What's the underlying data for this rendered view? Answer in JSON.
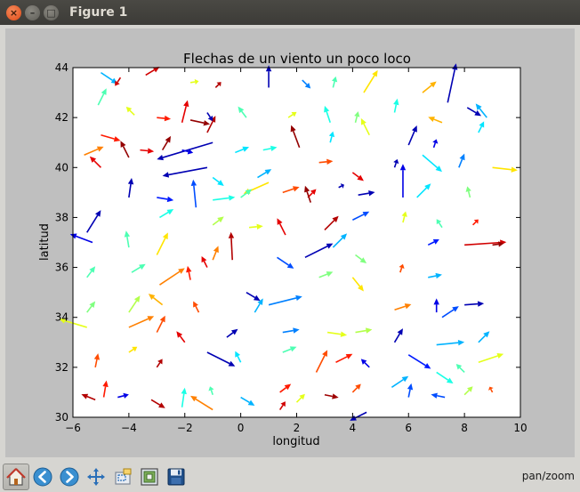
{
  "window": {
    "title": "Figure 1",
    "close_glyph": "×",
    "min_glyph": "–",
    "max_glyph": "□"
  },
  "toolbar": {
    "buttons": [
      {
        "name": "home-button",
        "icon": "home-icon",
        "active": true
      },
      {
        "name": "back-button",
        "icon": "arrow-left-icon"
      },
      {
        "name": "forward-button",
        "icon": "arrow-right-icon"
      },
      {
        "name": "pan-button",
        "icon": "move-icon"
      },
      {
        "name": "zoom-button",
        "icon": "zoom-rect-icon"
      },
      {
        "name": "subplots-button",
        "icon": "subplots-icon"
      },
      {
        "name": "save-button",
        "icon": "save-icon"
      }
    ],
    "status": "pan/zoom"
  },
  "chart_data": {
    "type": "quiver",
    "title": "Flechas de un viento un poco loco",
    "xlabel": "longitud",
    "ylabel": "latitud",
    "xlim": [
      -6,
      10
    ],
    "ylim": [
      30,
      44
    ],
    "xticks": [
      "−6",
      "−4",
      "−2",
      "0",
      "2",
      "4",
      "6",
      "8",
      "10"
    ],
    "yticks": [
      "30",
      "32",
      "34",
      "36",
      "38",
      "40",
      "42",
      "44"
    ],
    "colormap": "jet",
    "arrows": [
      {
        "x": -5.0,
        "y": 43.8,
        "u": 0.6,
        "v": -0.4,
        "c": 0.3
      },
      {
        "x": -4.3,
        "y": 43.6,
        "u": -0.2,
        "v": -0.3,
        "c": 0.92
      },
      {
        "x": -3.4,
        "y": 43.7,
        "u": 0.5,
        "v": 0.3,
        "c": 0.92
      },
      {
        "x": -1.8,
        "y": 43.4,
        "u": 0.3,
        "v": 0.05,
        "c": 0.6
      },
      {
        "x": -0.9,
        "y": 43.2,
        "u": 0.2,
        "v": 0.2,
        "c": 0.95
      },
      {
        "x": 1.0,
        "y": 43.2,
        "u": 0.0,
        "v": 0.8,
        "c": 0.05
      },
      {
        "x": 2.2,
        "y": 43.5,
        "u": 0.3,
        "v": -0.3,
        "c": 0.25
      },
      {
        "x": 3.3,
        "y": 43.2,
        "u": 0.1,
        "v": 0.4,
        "c": 0.45
      },
      {
        "x": 4.4,
        "y": 43.0,
        "u": 0.5,
        "v": 0.8,
        "c": 0.65
      },
      {
        "x": 6.5,
        "y": 43.0,
        "u": 0.5,
        "v": 0.4,
        "c": 0.7
      },
      {
        "x": 7.4,
        "y": 42.6,
        "u": 0.3,
        "v": 1.4,
        "c": 0.05
      },
      {
        "x": 8.1,
        "y": 42.4,
        "u": 0.5,
        "v": -0.3,
        "c": 0.05
      },
      {
        "x": 8.8,
        "y": 42.0,
        "u": -0.4,
        "v": 0.5,
        "c": 0.3
      },
      {
        "x": -5.1,
        "y": 42.5,
        "u": 0.3,
        "v": 0.6,
        "c": 0.45
      },
      {
        "x": -3.8,
        "y": 42.1,
        "u": -0.3,
        "v": 0.3,
        "c": 0.6
      },
      {
        "x": -3.0,
        "y": 42.0,
        "u": 0.5,
        "v": -0.05,
        "c": 0.85
      },
      {
        "x": -2.1,
        "y": 41.8,
        "u": 0.2,
        "v": 0.8,
        "c": 0.9
      },
      {
        "x": -1.2,
        "y": 41.4,
        "u": 0.3,
        "v": 0.6,
        "c": 0.95
      },
      {
        "x": -1.8,
        "y": 41.9,
        "u": 0.7,
        "v": -0.15,
        "c": 0.98
      },
      {
        "x": -1.2,
        "y": 42.2,
        "u": 0.2,
        "v": -0.3,
        "c": 0.05
      },
      {
        "x": 0.2,
        "y": 42.0,
        "u": -0.3,
        "v": 0.4,
        "c": 0.45
      },
      {
        "x": 1.7,
        "y": 42.0,
        "u": 0.3,
        "v": 0.2,
        "c": 0.6
      },
      {
        "x": 3.2,
        "y": 41.8,
        "u": -0.2,
        "v": 0.6,
        "c": 0.4
      },
      {
        "x": 4.1,
        "y": 41.8,
        "u": 0.1,
        "v": 0.4,
        "c": 0.5
      },
      {
        "x": 5.5,
        "y": 42.2,
        "u": 0.1,
        "v": 0.5,
        "c": 0.4
      },
      {
        "x": 7.2,
        "y": 41.8,
        "u": -0.5,
        "v": 0.2,
        "c": 0.7
      },
      {
        "x": -5.0,
        "y": 41.3,
        "u": 0.7,
        "v": -0.2,
        "c": 0.85
      },
      {
        "x": -3.6,
        "y": 40.7,
        "u": 0.5,
        "v": -0.05,
        "c": 0.9
      },
      {
        "x": -2.8,
        "y": 40.7,
        "u": 0.3,
        "v": 0.5,
        "c": 0.98
      },
      {
        "x": -1.0,
        "y": 41.0,
        "u": -2.0,
        "v": -0.6,
        "c": 0.05
      },
      {
        "x": -2.1,
        "y": 40.7,
        "u": 0.4,
        "v": -0.1,
        "c": 0.1
      },
      {
        "x": -0.2,
        "y": 40.6,
        "u": 0.5,
        "v": 0.2,
        "c": 0.35
      },
      {
        "x": 0.8,
        "y": 40.7,
        "u": 0.5,
        "v": 0.1,
        "c": 0.4
      },
      {
        "x": 2.1,
        "y": 40.8,
        "u": -0.3,
        "v": 0.8,
        "c": 0.98
      },
      {
        "x": 3.2,
        "y": 41.0,
        "u": 0.1,
        "v": 0.4,
        "c": 0.35
      },
      {
        "x": 4.6,
        "y": 41.3,
        "u": -0.3,
        "v": 0.6,
        "c": 0.6
      },
      {
        "x": 6.0,
        "y": 40.9,
        "u": 0.3,
        "v": 0.7,
        "c": 0.05
      },
      {
        "x": 6.9,
        "y": 40.8,
        "u": 0.1,
        "v": 0.3,
        "c": 0.1
      },
      {
        "x": 8.5,
        "y": 41.4,
        "u": 0.2,
        "v": 0.4,
        "c": 0.35
      },
      {
        "x": -5.6,
        "y": 40.5,
        "u": 0.7,
        "v": 0.3,
        "c": 0.75
      },
      {
        "x": -5.0,
        "y": 40.0,
        "u": -0.4,
        "v": 0.4,
        "c": 0.9
      },
      {
        "x": -4.0,
        "y": 40.4,
        "u": -0.3,
        "v": 0.6,
        "c": 0.98
      },
      {
        "x": -1.2,
        "y": 40.0,
        "u": -1.6,
        "v": -0.3,
        "c": 0.05
      },
      {
        "x": -1.0,
        "y": 39.6,
        "u": 0.4,
        "v": -0.3,
        "c": 0.35
      },
      {
        "x": 0.6,
        "y": 39.6,
        "u": 0.5,
        "v": 0.3,
        "c": 0.3
      },
      {
        "x": 1.0,
        "y": 39.4,
        "u": -0.9,
        "v": -0.4,
        "c": 0.65
      },
      {
        "x": 2.8,
        "y": 40.2,
        "u": 0.5,
        "v": 0.05,
        "c": 0.8
      },
      {
        "x": 4.0,
        "y": 39.8,
        "u": 0.4,
        "v": -0.3,
        "c": 0.9
      },
      {
        "x": 5.5,
        "y": 40.0,
        "u": 0.1,
        "v": 0.3,
        "c": 0.05
      },
      {
        "x": 6.5,
        "y": 40.5,
        "u": 0.7,
        "v": -0.6,
        "c": 0.35
      },
      {
        "x": 7.8,
        "y": 40.0,
        "u": 0.2,
        "v": 0.5,
        "c": 0.25
      },
      {
        "x": 9.0,
        "y": 40.0,
        "u": 0.9,
        "v": -0.1,
        "c": 0.65
      },
      {
        "x": -4.0,
        "y": 38.8,
        "u": 0.1,
        "v": 0.7,
        "c": 0.05
      },
      {
        "x": -3.0,
        "y": 38.8,
        "u": 0.6,
        "v": -0.1,
        "c": 0.15
      },
      {
        "x": -1.6,
        "y": 38.4,
        "u": -0.1,
        "v": 1.0,
        "c": 0.2
      },
      {
        "x": -1.0,
        "y": 38.7,
        "u": 0.8,
        "v": 0.1,
        "c": 0.4
      },
      {
        "x": 0.0,
        "y": 38.8,
        "u": 0.4,
        "v": 0.3,
        "c": 0.45
      },
      {
        "x": 1.5,
        "y": 39.0,
        "u": 0.6,
        "v": 0.2,
        "c": 0.8
      },
      {
        "x": 2.4,
        "y": 38.8,
        "u": 0.3,
        "v": 0.3,
        "c": 0.9
      },
      {
        "x": 2.5,
        "y": 38.6,
        "u": -0.2,
        "v": 0.6,
        "c": 0.98
      },
      {
        "x": 3.5,
        "y": 39.2,
        "u": 0.2,
        "v": 0.1,
        "c": 0.05
      },
      {
        "x": 4.2,
        "y": 38.9,
        "u": 0.6,
        "v": 0.1,
        "c": 0.05
      },
      {
        "x": 5.8,
        "y": 38.8,
        "u": 0.0,
        "v": 1.2,
        "c": 0.1
      },
      {
        "x": 6.3,
        "y": 38.8,
        "u": 0.5,
        "v": 0.5,
        "c": 0.35
      },
      {
        "x": 8.2,
        "y": 38.8,
        "u": -0.1,
        "v": 0.4,
        "c": 0.5
      },
      {
        "x": -5.5,
        "y": 37.4,
        "u": 0.5,
        "v": 0.8,
        "c": 0.05
      },
      {
        "x": -5.3,
        "y": 37.0,
        "u": -0.8,
        "v": 0.3,
        "c": 0.1
      },
      {
        "x": -2.9,
        "y": 38.0,
        "u": 0.5,
        "v": 0.3,
        "c": 0.4
      },
      {
        "x": -1.0,
        "y": 37.7,
        "u": 0.4,
        "v": 0.3,
        "c": 0.55
      },
      {
        "x": 0.3,
        "y": 37.6,
        "u": 0.5,
        "v": 0.05,
        "c": 0.6
      },
      {
        "x": 1.6,
        "y": 37.3,
        "u": -0.3,
        "v": 0.6,
        "c": 0.9
      },
      {
        "x": 3.0,
        "y": 37.5,
        "u": 0.5,
        "v": 0.5,
        "c": 0.95
      },
      {
        "x": 4.0,
        "y": 37.9,
        "u": 0.6,
        "v": 0.3,
        "c": 0.2
      },
      {
        "x": 5.8,
        "y": 37.8,
        "u": 0.1,
        "v": 0.4,
        "c": 0.6
      },
      {
        "x": 7.2,
        "y": 37.6,
        "u": -0.2,
        "v": 0.3,
        "c": 0.45
      },
      {
        "x": 8.3,
        "y": 37.7,
        "u": 0.2,
        "v": 0.2,
        "c": 0.85
      },
      {
        "x": -4.0,
        "y": 36.8,
        "u": -0.1,
        "v": 0.6,
        "c": 0.45
      },
      {
        "x": -3.0,
        "y": 36.5,
        "u": 0.4,
        "v": 0.8,
        "c": 0.65
      },
      {
        "x": -1.0,
        "y": 36.3,
        "u": 0.2,
        "v": 0.5,
        "c": 0.75
      },
      {
        "x": -0.3,
        "y": 36.3,
        "u": -0.05,
        "v": 1.0,
        "c": 0.95
      },
      {
        "x": 1.3,
        "y": 36.4,
        "u": 0.6,
        "v": -0.4,
        "c": 0.2
      },
      {
        "x": 2.3,
        "y": 36.4,
        "u": 1.0,
        "v": 0.5,
        "c": 0.05
      },
      {
        "x": 3.3,
        "y": 36.8,
        "u": 0.5,
        "v": 0.5,
        "c": 0.3
      },
      {
        "x": 4.1,
        "y": 36.5,
        "u": 0.4,
        "v": -0.3,
        "c": 0.5
      },
      {
        "x": 6.7,
        "y": 36.9,
        "u": 0.4,
        "v": 0.2,
        "c": 0.15
      },
      {
        "x": 8.0,
        "y": 36.9,
        "u": 1.5,
        "v": 0.1,
        "c": 0.92
      },
      {
        "x": 9.0,
        "y": 36.9,
        "u": 0.4,
        "v": 0.05,
        "c": 0.98
      },
      {
        "x": -5.5,
        "y": 35.6,
        "u": 0.3,
        "v": 0.4,
        "c": 0.45
      },
      {
        "x": -3.9,
        "y": 35.8,
        "u": 0.5,
        "v": 0.3,
        "c": 0.45
      },
      {
        "x": -2.9,
        "y": 35.3,
        "u": 0.9,
        "v": 0.6,
        "c": 0.75
      },
      {
        "x": -1.8,
        "y": 35.5,
        "u": -0.1,
        "v": 0.5,
        "c": 0.85
      },
      {
        "x": -1.2,
        "y": 36.0,
        "u": -0.2,
        "v": 0.4,
        "c": 0.9
      },
      {
        "x": 0.2,
        "y": 35.0,
        "u": 0.5,
        "v": -0.3,
        "c": 0.05
      },
      {
        "x": 1.0,
        "y": 34.5,
        "u": 1.2,
        "v": 0.3,
        "c": 0.25
      },
      {
        "x": 2.8,
        "y": 35.6,
        "u": 0.5,
        "v": 0.2,
        "c": 0.5
      },
      {
        "x": 4.0,
        "y": 35.6,
        "u": 0.4,
        "v": -0.5,
        "c": 0.65
      },
      {
        "x": 5.7,
        "y": 35.8,
        "u": 0.1,
        "v": 0.3,
        "c": 0.8
      },
      {
        "x": 6.7,
        "y": 35.6,
        "u": 0.5,
        "v": 0.1,
        "c": 0.3
      },
      {
        "x": -5.5,
        "y": 34.2,
        "u": 0.3,
        "v": 0.4,
        "c": 0.5
      },
      {
        "x": -4.0,
        "y": 34.2,
        "u": 0.4,
        "v": 0.6,
        "c": 0.55
      },
      {
        "x": -2.8,
        "y": 34.5,
        "u": -0.5,
        "v": 0.4,
        "c": 0.7
      },
      {
        "x": -1.5,
        "y": 34.2,
        "u": -0.2,
        "v": 0.4,
        "c": 0.8
      },
      {
        "x": 0.5,
        "y": 34.2,
        "u": 0.3,
        "v": 0.5,
        "c": 0.3
      },
      {
        "x": 5.5,
        "y": 34.3,
        "u": 0.6,
        "v": 0.2,
        "c": 0.75
      },
      {
        "x": 7.2,
        "y": 34.0,
        "u": 0.6,
        "v": 0.4,
        "c": 0.2
      },
      {
        "x": 8.0,
        "y": 34.5,
        "u": 0.7,
        "v": 0.05,
        "c": 0.05
      },
      {
        "x": 7.0,
        "y": 34.2,
        "u": 0.0,
        "v": 0.5,
        "c": 0.1
      },
      {
        "x": -5.5,
        "y": 33.6,
        "u": -1.0,
        "v": 0.3,
        "c": 0.6
      },
      {
        "x": -4.0,
        "y": 33.6,
        "u": 0.9,
        "v": 0.4,
        "c": 0.75
      },
      {
        "x": -3.0,
        "y": 33.4,
        "u": 0.3,
        "v": 0.6,
        "c": 0.8
      },
      {
        "x": -2.0,
        "y": 33.0,
        "u": -0.3,
        "v": 0.4,
        "c": 0.9
      },
      {
        "x": -0.5,
        "y": 33.2,
        "u": 0.4,
        "v": 0.3,
        "c": 0.05
      },
      {
        "x": 1.5,
        "y": 33.4,
        "u": 0.6,
        "v": 0.1,
        "c": 0.25
      },
      {
        "x": 3.1,
        "y": 33.4,
        "u": 0.7,
        "v": -0.1,
        "c": 0.6
      },
      {
        "x": 4.1,
        "y": 33.4,
        "u": 0.6,
        "v": 0.1,
        "c": 0.55
      },
      {
        "x": 5.5,
        "y": 33.0,
        "u": 0.3,
        "v": 0.5,
        "c": 0.05
      },
      {
        "x": 7.0,
        "y": 32.9,
        "u": 1.0,
        "v": 0.1,
        "c": 0.3
      },
      {
        "x": 8.5,
        "y": 33.0,
        "u": 0.4,
        "v": 0.4,
        "c": 0.3
      },
      {
        "x": -5.2,
        "y": 32.0,
        "u": 0.1,
        "v": 0.5,
        "c": 0.8
      },
      {
        "x": -4.0,
        "y": 32.6,
        "u": 0.3,
        "v": 0.2,
        "c": 0.65
      },
      {
        "x": -3.0,
        "y": 32.0,
        "u": 0.2,
        "v": 0.3,
        "c": 0.95
      },
      {
        "x": -1.2,
        "y": 32.6,
        "u": 1.0,
        "v": -0.5,
        "c": 0.05
      },
      {
        "x": 0.0,
        "y": 32.2,
        "u": -0.2,
        "v": 0.4,
        "c": 0.35
      },
      {
        "x": 1.5,
        "y": 32.6,
        "u": 0.5,
        "v": 0.2,
        "c": 0.45
      },
      {
        "x": 2.7,
        "y": 31.8,
        "u": 0.4,
        "v": 0.8,
        "c": 0.8
      },
      {
        "x": 3.4,
        "y": 32.2,
        "u": 0.6,
        "v": 0.3,
        "c": 0.85
      },
      {
        "x": 4.6,
        "y": 32.0,
        "u": -0.3,
        "v": 0.3,
        "c": 0.1
      },
      {
        "x": 6.0,
        "y": 32.5,
        "u": 0.8,
        "v": -0.5,
        "c": 0.15
      },
      {
        "x": 7.0,
        "y": 31.8,
        "u": 0.6,
        "v": -0.4,
        "c": 0.4
      },
      {
        "x": 8.0,
        "y": 31.8,
        "u": -0.3,
        "v": 0.3,
        "c": 0.45
      },
      {
        "x": 8.5,
        "y": 32.2,
        "u": 0.9,
        "v": 0.3,
        "c": 0.6
      },
      {
        "x": -4.9,
        "y": 30.8,
        "u": 0.1,
        "v": 0.6,
        "c": 0.85
      },
      {
        "x": -4.4,
        "y": 30.8,
        "u": 0.4,
        "v": 0.1,
        "c": 0.1
      },
      {
        "x": -3.2,
        "y": 30.7,
        "u": 0.5,
        "v": -0.3,
        "c": 0.95
      },
      {
        "x": -2.1,
        "y": 30.4,
        "u": 0.1,
        "v": 0.7,
        "c": 0.4
      },
      {
        "x": -1.0,
        "y": 30.9,
        "u": -0.1,
        "v": 0.3,
        "c": 0.45
      },
      {
        "x": 0.0,
        "y": 30.8,
        "u": 0.5,
        "v": -0.3,
        "c": 0.3
      },
      {
        "x": 1.4,
        "y": 31.0,
        "u": 0.4,
        "v": 0.3,
        "c": 0.85
      },
      {
        "x": 2.0,
        "y": 30.6,
        "u": 0.3,
        "v": 0.3,
        "c": 0.6
      },
      {
        "x": 3.0,
        "y": 30.9,
        "u": 0.5,
        "v": -0.1,
        "c": 0.97
      },
      {
        "x": 4.0,
        "y": 31.0,
        "u": 0.3,
        "v": 0.3,
        "c": 0.8
      },
      {
        "x": 4.5,
        "y": 30.2,
        "u": -0.6,
        "v": -0.3,
        "c": 0.05
      },
      {
        "x": 5.4,
        "y": 31.2,
        "u": 0.6,
        "v": 0.4,
        "c": 0.3
      },
      {
        "x": 6.0,
        "y": 30.8,
        "u": 0.1,
        "v": 0.5,
        "c": 0.2
      },
      {
        "x": 7.3,
        "y": 30.8,
        "u": -0.5,
        "v": 0.1,
        "c": 0.2
      },
      {
        "x": 8.0,
        "y": 30.9,
        "u": 0.3,
        "v": 0.3,
        "c": 0.55
      },
      {
        "x": 9.0,
        "y": 31.0,
        "u": -0.1,
        "v": 0.2,
        "c": 0.8
      },
      {
        "x": 1.4,
        "y": 30.3,
        "u": 0.2,
        "v": 0.3,
        "c": 0.92
      },
      {
        "x": -1.0,
        "y": 30.3,
        "u": -0.8,
        "v": 0.5,
        "c": 0.75
      },
      {
        "x": -5.2,
        "y": 30.7,
        "u": -0.5,
        "v": 0.2,
        "c": 0.95
      }
    ]
  }
}
